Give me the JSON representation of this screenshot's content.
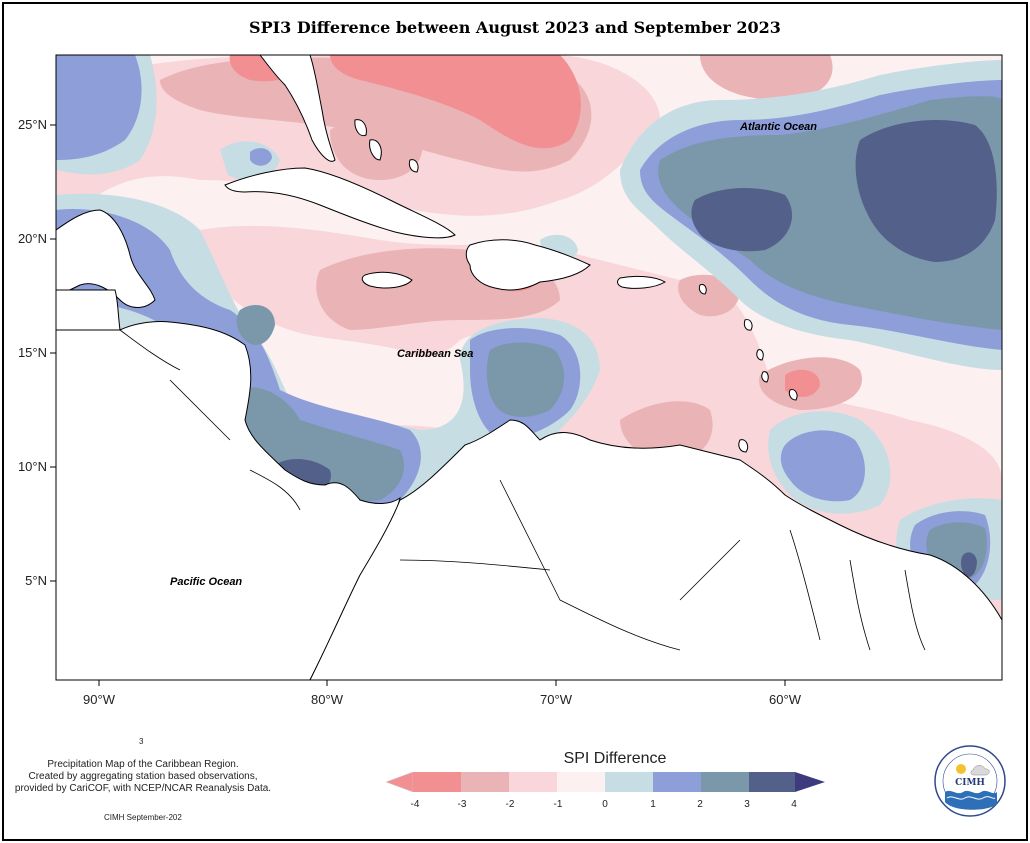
{
  "title": "SPI3 Difference between August 2023 and September 2023",
  "axes": {
    "lat_labels": [
      "25°N",
      "20°N",
      "15°N",
      "10°N",
      "5°N"
    ],
    "lon_labels": [
      "90°W",
      "80°W",
      "70°W",
      "60°W"
    ]
  },
  "places": {
    "atlantic": "Atlantic Ocean",
    "caribbean": "Caribbean Sea",
    "pacific": "Pacific Ocean"
  },
  "legend": {
    "title": "SPI Difference",
    "ticks": [
      "-4",
      "-3",
      "-2",
      "-1",
      "0",
      "1",
      "2",
      "3",
      "4"
    ],
    "colors": {
      "lt_minus3": "#f28f93",
      "minus3_minus2": "#eab3b6",
      "minus2_minus1": "#f8d6da",
      "minus1_0": "#fdf0f1",
      "zero_1": "#c7dde4",
      "one_2": "#8e9ed9",
      "two_3": "#7b98ab",
      "gt3": "#53608a",
      "land": "#ffffff"
    }
  },
  "footnote": {
    "number": "3",
    "lines": [
      "Precipitation Map of the Caribbean Region.",
      "Created by aggregating station based observations,",
      "provided by CariCOF, with NCEP/NCAR Reanalysis Data."
    ],
    "credit": "CIMH September-202"
  },
  "logo": {
    "text": "CIMH"
  }
}
